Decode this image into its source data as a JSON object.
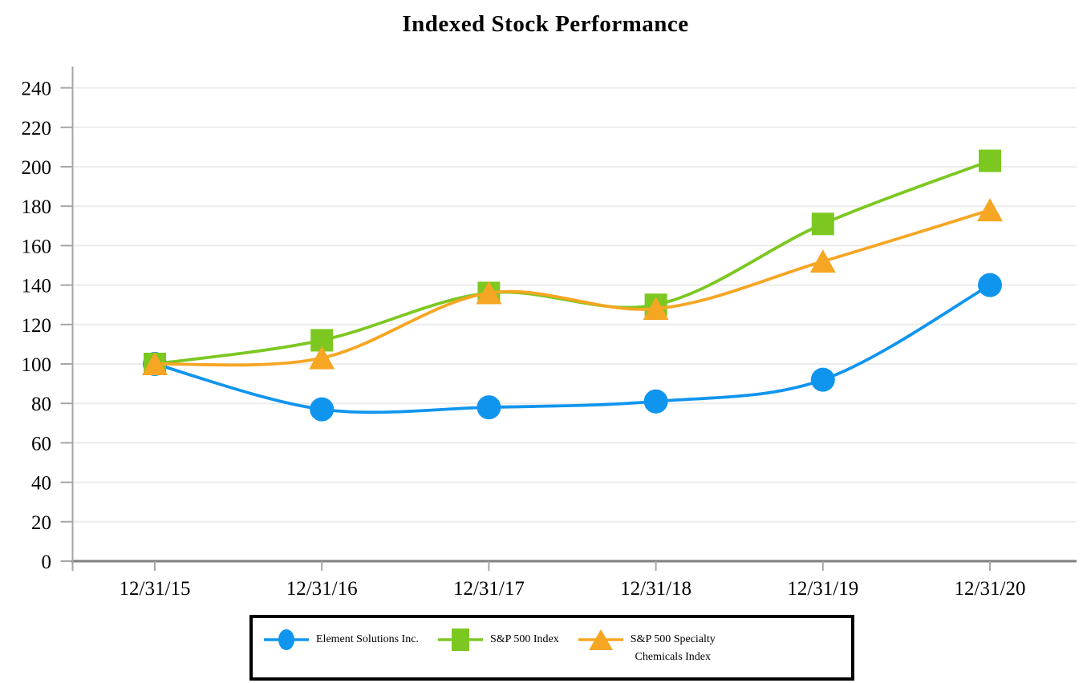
{
  "chart_data": {
    "type": "line",
    "title": "Indexed Stock Performance",
    "categories": [
      "12/31/15",
      "12/31/16",
      "12/31/17",
      "12/31/18",
      "12/31/19",
      "12/31/20"
    ],
    "series": [
      {
        "name": "Element Solutions Inc.",
        "legend_lines": [
          "Element Solutions Inc."
        ],
        "color": "#1095EF",
        "marker": "circle",
        "values": [
          100,
          77,
          78,
          81,
          92,
          140
        ]
      },
      {
        "name": "S&P 500 Index",
        "legend_lines": [
          "S&P 500 Index"
        ],
        "color": "#7CC821",
        "marker": "square",
        "values": [
          100,
          112,
          136,
          130,
          171,
          203
        ]
      },
      {
        "name": "S&P 500 Specialty Chemicals Index",
        "legend_lines": [
          "S&P 500 Specialty",
          "Chemicals Index"
        ],
        "color": "#F6A623",
        "marker": "triangle",
        "values": [
          100,
          103,
          136,
          128,
          152,
          178
        ]
      }
    ],
    "y_axis": {
      "min": 0,
      "max": 240,
      "step": 20,
      "tick_labels": [
        "0",
        "20",
        "40",
        "60",
        "80",
        "100",
        "120",
        "140",
        "160",
        "180",
        "200",
        "220",
        "240"
      ]
    },
    "x_axis": {
      "tick_labels": [
        "12/31/15",
        "12/31/16",
        "12/31/17",
        "12/31/18",
        "12/31/19",
        "12/31/20"
      ]
    },
    "grid": true,
    "legend_position": "bottom"
  },
  "style": {
    "grid_color": "#ECECEC",
    "axis_color": "#A6A6A6",
    "baseline_color": "#7F7F7F",
    "text_color": "#000000",
    "background": "#FFFFFF"
  }
}
